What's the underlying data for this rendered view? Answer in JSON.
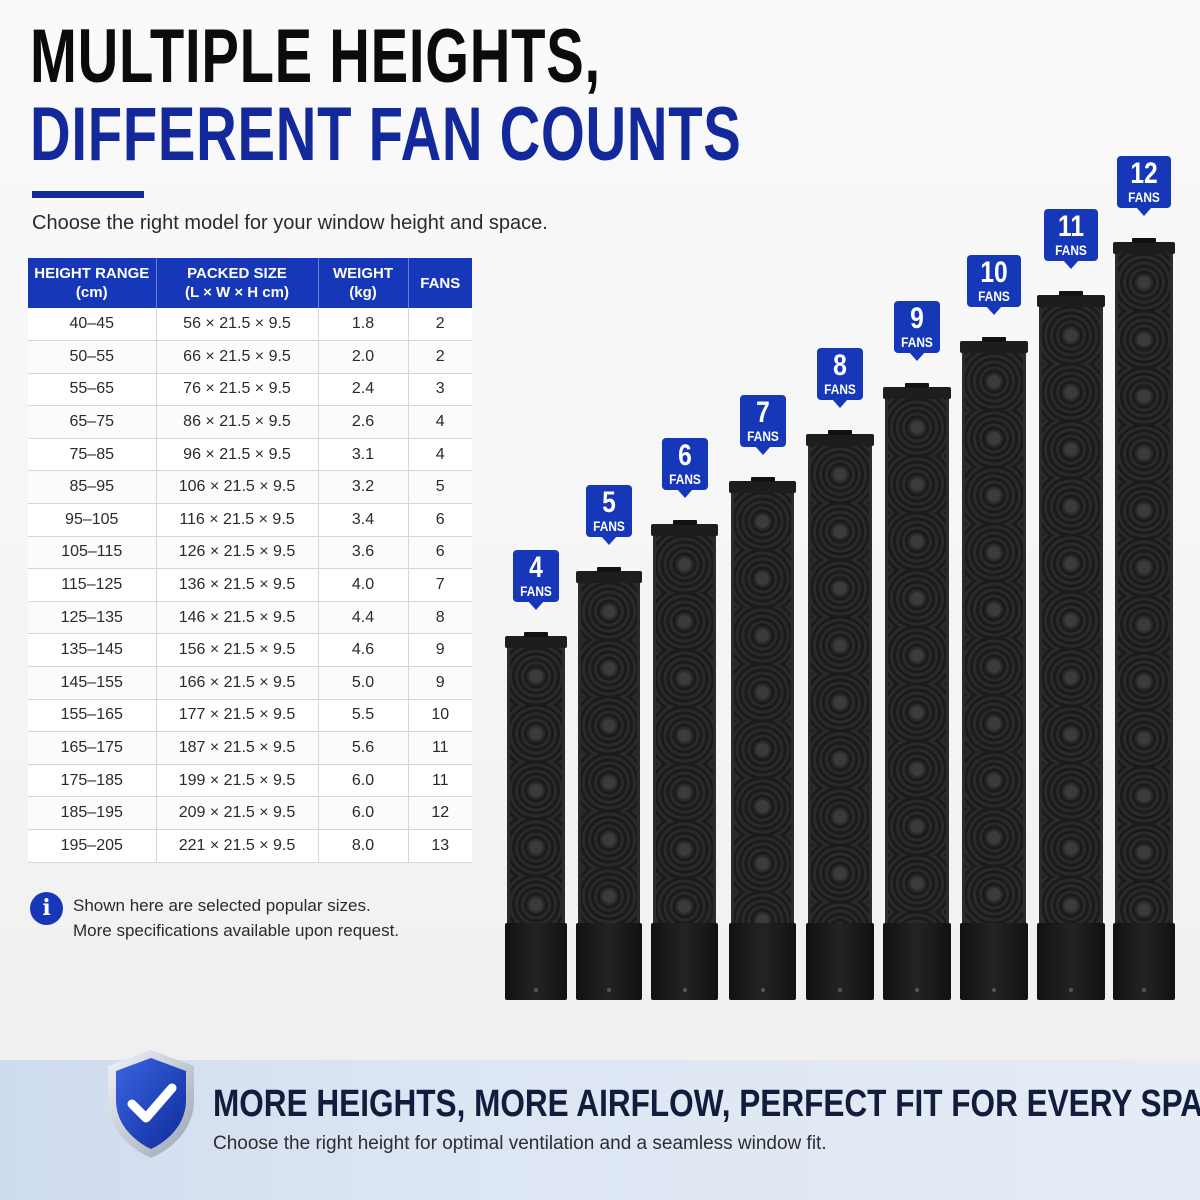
{
  "header": {
    "title_line1": "MULTIPLE HEIGHTS,",
    "title_line2": "DIFFERENT FAN COUNTS",
    "subtitle": "Choose the right model for your window height and space."
  },
  "table": {
    "headers": [
      {
        "line1": "HEIGHT RANGE",
        "line2": "(cm)"
      },
      {
        "line1": "PACKED SIZE",
        "line2": "(L × W × H cm)"
      },
      {
        "line1": "WEIGHT",
        "line2": "(kg)"
      },
      {
        "line1": "FANS",
        "line2": ""
      }
    ],
    "rows": [
      [
        "40–45",
        "56 × 21.5 × 9.5",
        "1.8",
        "2"
      ],
      [
        "50–55",
        "66 × 21.5 × 9.5",
        "2.0",
        "2"
      ],
      [
        "55–65",
        "76 × 21.5 × 9.5",
        "2.4",
        "3"
      ],
      [
        "65–75",
        "86 × 21.5 × 9.5",
        "2.6",
        "4"
      ],
      [
        "75–85",
        "96 × 21.5 × 9.5",
        "3.1",
        "4"
      ],
      [
        "85–95",
        "106 × 21.5 × 9.5",
        "3.2",
        "5"
      ],
      [
        "95–105",
        "116 × 21.5 × 9.5",
        "3.4",
        "6"
      ],
      [
        "105–115",
        "126 × 21.5 × 9.5",
        "3.6",
        "6"
      ],
      [
        "115–125",
        "136 × 21.5 × 9.5",
        "4.0",
        "7"
      ],
      [
        "125–135",
        "146 × 21.5 × 9.5",
        "4.4",
        "8"
      ],
      [
        "135–145",
        "156 × 21.5 × 9.5",
        "4.6",
        "9"
      ],
      [
        "145–155",
        "166 × 21.5 × 9.5",
        "5.0",
        "9"
      ],
      [
        "155–165",
        "177 × 21.5 × 9.5",
        "5.5",
        "10"
      ],
      [
        "165–175",
        "187 × 21.5 × 9.5",
        "5.6",
        "11"
      ],
      [
        "175–185",
        "199 × 21.5 × 9.5",
        "6.0",
        "11"
      ],
      [
        "185–195",
        "209 × 21.5 × 9.5",
        "6.0",
        "12"
      ],
      [
        "195–205",
        "221 × 21.5 × 9.5",
        "8.0",
        "13"
      ]
    ]
  },
  "note": {
    "icon": "info-icon",
    "line1": "Shown here are selected popular sizes.",
    "line2": "More specifications available upon request."
  },
  "towers": [
    {
      "fans": "4",
      "label": "FANS"
    },
    {
      "fans": "5",
      "label": "FANS"
    },
    {
      "fans": "6",
      "label": "FANS"
    },
    {
      "fans": "7",
      "label": "FANS"
    },
    {
      "fans": "8",
      "label": "FANS"
    },
    {
      "fans": "9",
      "label": "FANS"
    },
    {
      "fans": "10",
      "label": "FANS"
    },
    {
      "fans": "11",
      "label": "FANS"
    },
    {
      "fans": "12",
      "label": "FANS"
    }
  ],
  "banner": {
    "icon": "shield-check-icon",
    "title": "MORE HEIGHTS, MORE AIRFLOW, PERFECT FIT FOR EVERY SPACE.",
    "subtitle": "Choose the right height for optimal ventilation and a seamless window fit."
  },
  "colors": {
    "brand_blue": "#1637b8",
    "title_blue": "#13289a",
    "tower_black": "#1e1e1e"
  }
}
